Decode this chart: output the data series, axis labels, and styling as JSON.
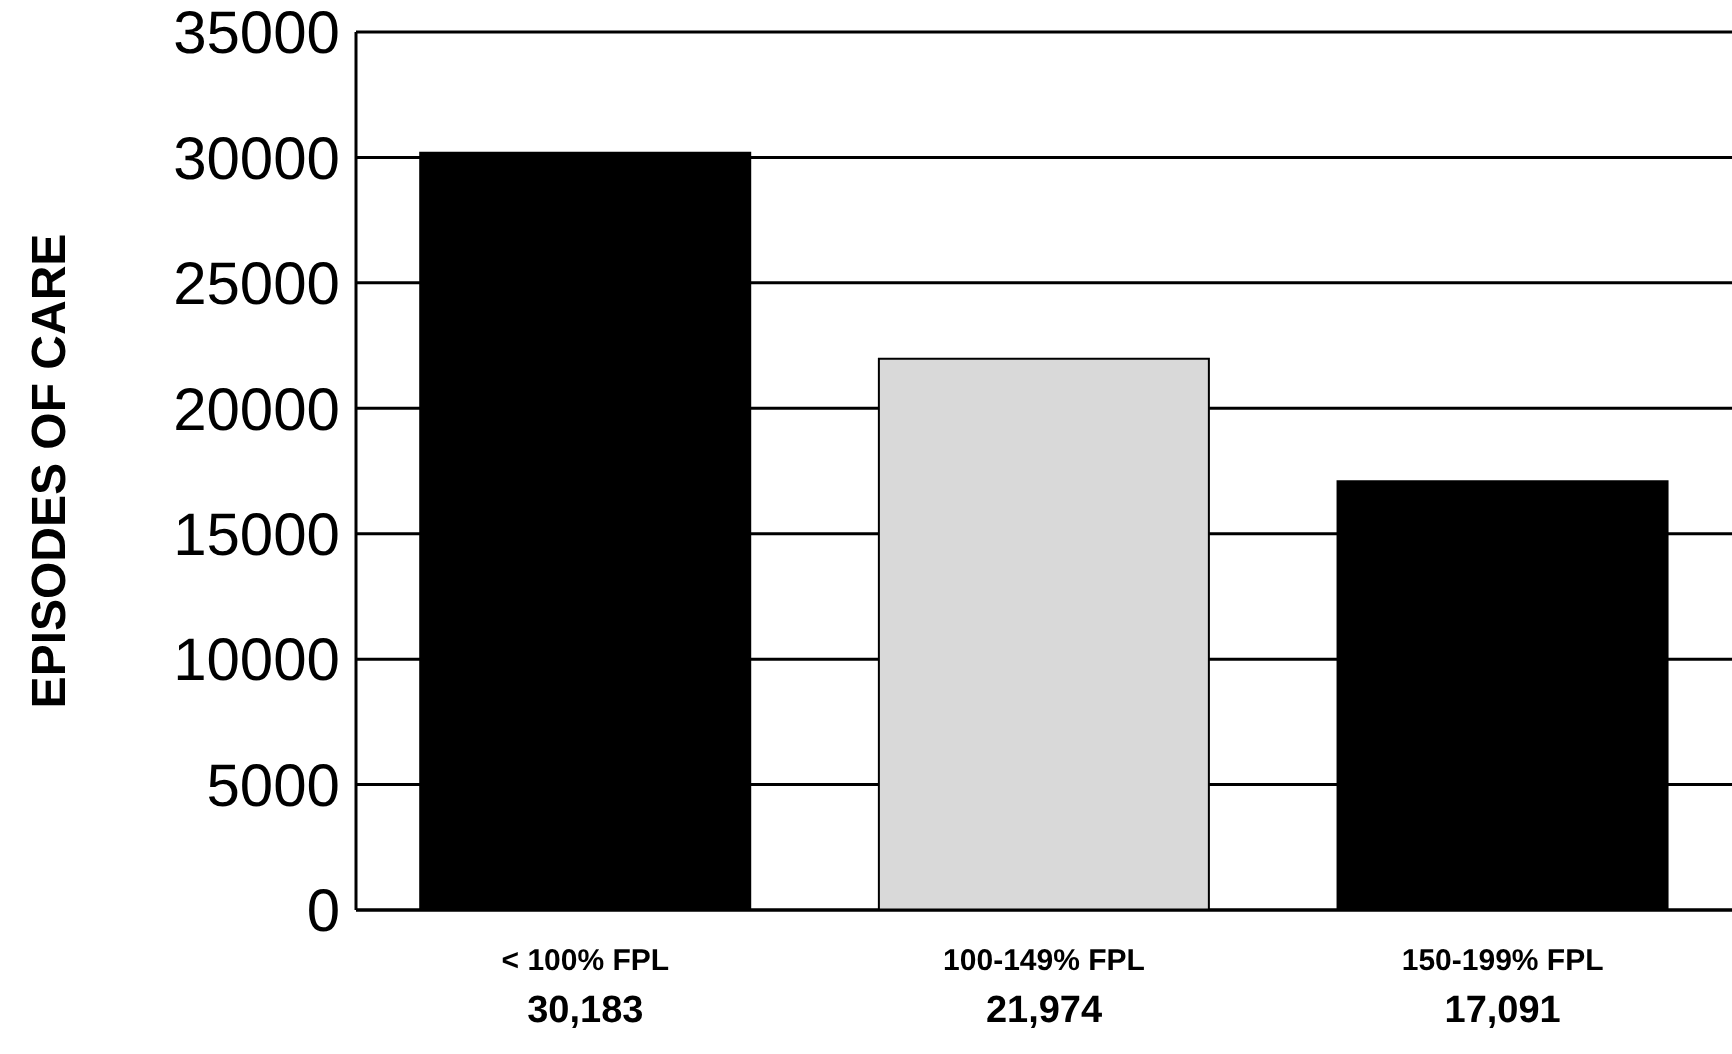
{
  "chart_data": {
    "type": "bar",
    "ylabel": "EPISODES OF CARE",
    "categories": [
      "< 100% FPL",
      "100-149% FPL",
      "150-199% FPL"
    ],
    "values": [
      30183,
      21974,
      17091
    ],
    "value_labels": [
      "30,183",
      "21,974",
      "17,091"
    ],
    "colors": [
      "#000000",
      "#d9d9d9",
      "#000000"
    ],
    "ylim": [
      0,
      35000
    ],
    "yticks": [
      0,
      5000,
      10000,
      15000,
      20000,
      25000,
      30000,
      35000
    ],
    "grid": "y",
    "legend": false
  }
}
